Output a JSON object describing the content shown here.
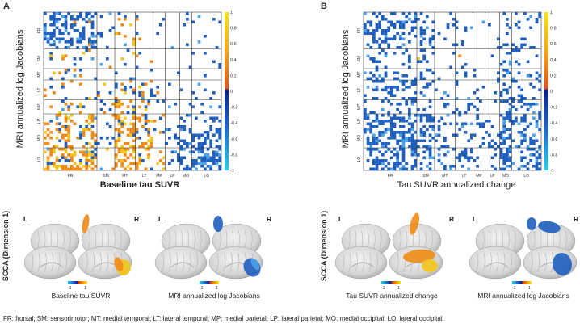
{
  "chart_data": [
    {
      "type": "heatmap",
      "panel": "A",
      "title": "",
      "xlabel": "Baseline tau SUVR",
      "ylabel": "MRI annualized log Jacobians",
      "x_regions": [
        "FR",
        "SM",
        "MT",
        "LT",
        "MP",
        "LP",
        "MO",
        "LO"
      ],
      "y_regions": [
        "FR",
        "SM",
        "MT",
        "LT",
        "MP",
        "LP",
        "MO",
        "LO"
      ],
      "colorbar": {
        "range": [
          -1,
          1
        ],
        "ticks": [
          "1",
          "0.8",
          "0.6",
          "0.4",
          "0.2",
          "0",
          "-0.2",
          "-0.4",
          "-0.6",
          "-0.8",
          "-1"
        ]
      },
      "seed": 7,
      "blue_density": [
        [
          0.45,
          0.1,
          0.05,
          0.06,
          0.03,
          0.02,
          0.02,
          0.04
        ],
        [
          0.05,
          0.08,
          0.04,
          0.05,
          0.02,
          0.02,
          0.04,
          0.06
        ],
        [
          0.04,
          0.03,
          0.05,
          0.04,
          0.02,
          0.02,
          0.03,
          0.03
        ],
        [
          0.06,
          0.1,
          0.06,
          0.15,
          0.04,
          0.03,
          0.06,
          0.08
        ],
        [
          0.05,
          0.08,
          0.05,
          0.06,
          0.1,
          0.05,
          0.15,
          0.12
        ],
        [
          0.08,
          0.12,
          0.05,
          0.1,
          0.08,
          0.12,
          0.35,
          0.25
        ],
        [
          0.1,
          0.15,
          0.06,
          0.12,
          0.1,
          0.15,
          0.55,
          0.45
        ],
        [
          0.12,
          0.15,
          0.05,
          0.1,
          0.08,
          0.12,
          0.5,
          0.55
        ]
      ],
      "orange_density": [
        [
          0.01,
          0.01,
          0.06,
          0.03,
          0.01,
          0.0,
          0.0,
          0.0
        ],
        [
          0.05,
          0.02,
          0.03,
          0.02,
          0.0,
          0.0,
          0.0,
          0.0
        ],
        [
          0.1,
          0.02,
          0.05,
          0.03,
          0.0,
          0.0,
          0.0,
          0.0
        ],
        [
          0.06,
          0.03,
          0.1,
          0.1,
          0.02,
          0.0,
          0.0,
          0.0
        ],
        [
          0.1,
          0.03,
          0.3,
          0.15,
          0.02,
          0.0,
          0.0,
          0.0
        ],
        [
          0.2,
          0.05,
          0.35,
          0.2,
          0.05,
          0.0,
          0.0,
          0.0
        ],
        [
          0.3,
          0.05,
          0.4,
          0.3,
          0.05,
          0.01,
          0.0,
          0.0
        ],
        [
          0.45,
          0.05,
          0.45,
          0.35,
          0.05,
          0.01,
          0.0,
          0.0
        ]
      ]
    },
    {
      "type": "heatmap",
      "panel": "B",
      "title": "",
      "xlabel": "Tau SUVR annualized change",
      "ylabel": "MRI annualized log Jacobians",
      "x_regions": [
        "FR",
        "SM",
        "MT",
        "LT",
        "MP",
        "LP",
        "MO",
        "LO"
      ],
      "y_regions": [
        "FR",
        "SM",
        "MT",
        "LT",
        "MP",
        "LP",
        "MO",
        "LO"
      ],
      "colorbar": {
        "range": [
          -1,
          1
        ],
        "ticks": [
          "1",
          "0.8",
          "0.6",
          "0.4",
          "0.2",
          "0",
          "-0.2",
          "-0.4",
          "-0.6",
          "-0.8",
          "-1"
        ]
      },
      "seed": 19,
      "blue_density": [
        [
          0.35,
          0.25,
          0.1,
          0.1,
          0.08,
          0.05,
          0.25,
          0.15
        ],
        [
          0.2,
          0.15,
          0.08,
          0.1,
          0.08,
          0.06,
          0.2,
          0.12
        ],
        [
          0.25,
          0.2,
          0.1,
          0.15,
          0.1,
          0.08,
          0.25,
          0.15
        ],
        [
          0.3,
          0.25,
          0.1,
          0.15,
          0.1,
          0.1,
          0.3,
          0.2
        ],
        [
          0.3,
          0.25,
          0.12,
          0.18,
          0.12,
          0.1,
          0.35,
          0.25
        ],
        [
          0.5,
          0.45,
          0.15,
          0.2,
          0.15,
          0.15,
          0.5,
          0.35
        ],
        [
          0.5,
          0.45,
          0.15,
          0.2,
          0.15,
          0.15,
          0.5,
          0.35
        ],
        [
          0.45,
          0.4,
          0.15,
          0.2,
          0.15,
          0.15,
          0.55,
          0.4
        ]
      ],
      "orange_density": [
        [
          0.0,
          0.0,
          0.0,
          0.0,
          0.0,
          0.0,
          0.0,
          0.0
        ],
        [
          0.0,
          0.01,
          0.0,
          0.01,
          0.0,
          0.0,
          0.0,
          0.0
        ],
        [
          0.0,
          0.0,
          0.0,
          0.0,
          0.0,
          0.0,
          0.0,
          0.0
        ],
        [
          0.0,
          0.01,
          0.01,
          0.02,
          0.01,
          0.0,
          0.0,
          0.0
        ],
        [
          0.0,
          0.01,
          0.0,
          0.01,
          0.0,
          0.0,
          0.0,
          0.0
        ],
        [
          0.0,
          0.0,
          0.0,
          0.0,
          0.0,
          0.0,
          0.0,
          0.0
        ],
        [
          0.0,
          0.0,
          0.0,
          0.0,
          0.0,
          0.0,
          0.0,
          0.0
        ],
        [
          0.0,
          0.0,
          0.0,
          0.0,
          0.0,
          0.0,
          0.0,
          0.0
        ]
      ]
    }
  ],
  "panels": {
    "a": {
      "letter": "A",
      "xlabel": "Baseline tau SUVR",
      "ylabel": "MRI annualized log Jacobians"
    },
    "b": {
      "letter": "B",
      "xlabel": "Tau SUVR annualized change",
      "ylabel": "MRI annualized log Jacobians"
    }
  },
  "ticks": [
    "FR",
    "SM",
    "MT",
    "LT",
    "MP",
    "LP",
    "MO",
    "LO"
  ],
  "colorbar_ticks": [
    "1",
    "0.8",
    "0.6",
    "0.4",
    "0.2",
    "0",
    "-0.2",
    "-0.4",
    "-0.6",
    "-0.8",
    "-1"
  ],
  "brains": {
    "side_left": "L",
    "side_right": "R",
    "scca_label": "SCCA (Dimension 1)",
    "mini_min": "-1",
    "mini_max": "1",
    "captions": {
      "a1": "Baseline tau SUVR",
      "a2": "MRI annualized log Jacobians",
      "b1": "Tau SUVR annualized change",
      "b2": "MRI annualized log Jacobians"
    }
  },
  "footnote": "FR: frontal; SM: sensorimotor; MT: medial temporal; LT: lateral temporal; MP: medial parietal; LP: lateral parietal; MO: medial occipital; LO: lateral occipital.",
  "colors": {
    "blue": "#1f5fbf",
    "orange": "#f08a16",
    "yellow": "#f5c51a",
    "lightblue": "#4aa3e8",
    "cmap_top": "#f7e31a",
    "cmap_bottom": "#27d1e8"
  }
}
